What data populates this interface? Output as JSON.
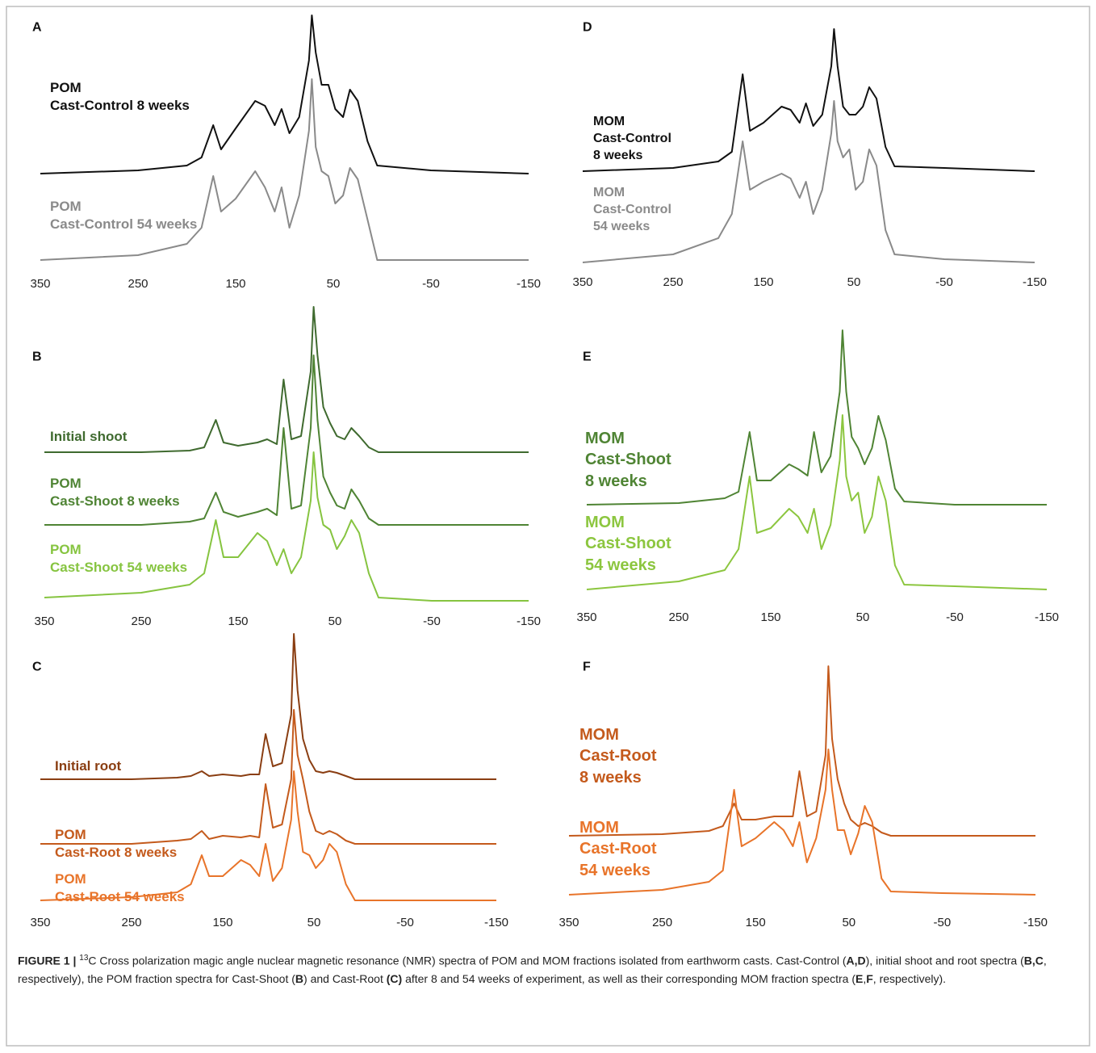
{
  "chart_data": [
    {
      "type": "line",
      "label": "A",
      "xlim": [
        350,
        -150
      ],
      "xticks": [
        350,
        250,
        150,
        50,
        -50,
        -150
      ],
      "x": [
        350,
        250,
        200,
        185,
        173,
        165,
        150,
        130,
        120,
        110,
        103,
        95,
        85,
        75,
        72,
        68,
        62,
        55,
        48,
        40,
        33,
        25,
        15,
        5,
        -50,
        -150
      ],
      "series": [
        {
          "name": "POM\nCast-Control 8 weeks",
          "color": "#111111",
          "values": [
            0,
            2,
            5,
            10,
            30,
            15,
            28,
            45,
            42,
            30,
            40,
            25,
            35,
            70,
            98,
            75,
            55,
            55,
            40,
            35,
            52,
            45,
            20,
            5,
            2,
            0
          ]
        },
        {
          "name": "POM\nCast-Control 54 weeks",
          "color": "#8a8a8a",
          "values": [
            0,
            3,
            10,
            20,
            52,
            30,
            38,
            55,
            45,
            30,
            45,
            20,
            40,
            80,
            112,
            70,
            55,
            52,
            35,
            40,
            57,
            50,
            25,
            0,
            0,
            0
          ]
        }
      ]
    },
    {
      "type": "line",
      "label": "B",
      "xlim": [
        350,
        -150
      ],
      "xticks": [
        350,
        250,
        150,
        50,
        -50,
        -150
      ],
      "x": [
        350,
        250,
        200,
        185,
        173,
        165,
        150,
        130,
        120,
        110,
        103,
        95,
        85,
        75,
        72,
        68,
        62,
        55,
        48,
        40,
        33,
        25,
        15,
        5,
        -50,
        -150
      ],
      "series": [
        {
          "name": "Initial shoot",
          "color": "#3f6a2f",
          "values": [
            0,
            0,
            1,
            3,
            20,
            6,
            4,
            6,
            8,
            5,
            45,
            8,
            10,
            50,
            90,
            60,
            28,
            18,
            10,
            8,
            15,
            10,
            3,
            0,
            0,
            0
          ]
        },
        {
          "name": "POM\nCast-Shoot 8 weeks",
          "color": "#4f8434",
          "values": [
            0,
            0,
            2,
            4,
            20,
            8,
            5,
            8,
            10,
            6,
            60,
            10,
            12,
            60,
            105,
            65,
            30,
            20,
            12,
            10,
            22,
            15,
            4,
            0,
            0,
            0
          ]
        },
        {
          "name": "POM\nCast-Shoot 54 weeks",
          "color": "#86c440",
          "values": [
            0,
            3,
            8,
            15,
            48,
            25,
            25,
            40,
            35,
            20,
            30,
            15,
            25,
            60,
            90,
            62,
            45,
            42,
            30,
            38,
            48,
            40,
            15,
            0,
            -2,
            -2
          ]
        }
      ]
    },
    {
      "type": "line",
      "label": "C",
      "xlim": [
        350,
        -150
      ],
      "xticks": [
        350,
        250,
        150,
        50,
        -50,
        -150
      ],
      "x": [
        350,
        250,
        200,
        185,
        173,
        165,
        150,
        130,
        120,
        110,
        103,
        95,
        85,
        75,
        72,
        68,
        62,
        55,
        48,
        40,
        33,
        25,
        15,
        5,
        -50,
        -150
      ],
      "series": [
        {
          "name": "Initial root",
          "color": "#8a3e12",
          "values": [
            0,
            0,
            1,
            2,
            5,
            2,
            3,
            2,
            3,
            3,
            28,
            8,
            10,
            40,
            90,
            55,
            25,
            12,
            5,
            4,
            5,
            4,
            2,
            0,
            0,
            0
          ]
        },
        {
          "name": "POM\nCast-Root 8 weeks",
          "color": "#c45a1c",
          "values": [
            0,
            0,
            2,
            3,
            8,
            3,
            5,
            4,
            5,
            4,
            37,
            10,
            12,
            40,
            83,
            55,
            40,
            20,
            8,
            6,
            8,
            6,
            2,
            0,
            0,
            0
          ]
        },
        {
          "name": "POM\nCast-Root 54 weeks",
          "color": "#e8742a",
          "values": [
            0,
            2,
            5,
            10,
            28,
            15,
            15,
            25,
            22,
            15,
            35,
            12,
            20,
            50,
            80,
            55,
            30,
            28,
            20,
            25,
            35,
            30,
            10,
            0,
            0,
            0
          ]
        }
      ]
    },
    {
      "type": "line",
      "label": "D",
      "xlim": [
        350,
        -150
      ],
      "xticks": [
        350,
        250,
        150,
        50,
        -50,
        -150
      ],
      "x": [
        350,
        250,
        200,
        185,
        173,
        165,
        150,
        130,
        120,
        110,
        103,
        95,
        85,
        75,
        72,
        68,
        62,
        55,
        48,
        40,
        33,
        25,
        15,
        5,
        -50,
        -150
      ],
      "series": [
        {
          "name": "MOM\nCast-Control\n8 weeks",
          "color": "#111111",
          "values": [
            0,
            2,
            6,
            12,
            60,
            25,
            30,
            40,
            38,
            30,
            42,
            28,
            35,
            65,
            88,
            65,
            40,
            35,
            35,
            40,
            52,
            45,
            15,
            3,
            2,
            0
          ]
        },
        {
          "name": "MOM\nCast-Control\n54 weeks",
          "color": "#8a8a8a",
          "values": [
            0,
            5,
            15,
            30,
            75,
            45,
            50,
            55,
            52,
            40,
            50,
            30,
            45,
            80,
            100,
            75,
            65,
            70,
            45,
            50,
            70,
            60,
            20,
            5,
            2,
            0
          ]
        }
      ]
    },
    {
      "type": "line",
      "label": "E",
      "xlim": [
        350,
        -150
      ],
      "xticks": [
        350,
        250,
        150,
        50,
        -50,
        -150
      ],
      "x": [
        350,
        250,
        200,
        185,
        173,
        165,
        150,
        130,
        120,
        110,
        103,
        95,
        85,
        75,
        72,
        68,
        62,
        55,
        48,
        40,
        33,
        25,
        15,
        5,
        -50,
        -150
      ],
      "series": [
        {
          "name": "MOM\nCast-Shoot\n8 weeks",
          "color": "#4f8434",
          "values": [
            0,
            1,
            4,
            8,
            45,
            15,
            15,
            25,
            22,
            18,
            45,
            20,
            30,
            70,
            108,
            70,
            42,
            35,
            25,
            35,
            55,
            40,
            10,
            2,
            0,
            0
          ]
        },
        {
          "name": "MOM\nCast-Shoot\n54 weeks",
          "color": "#8cc63f",
          "values": [
            0,
            5,
            12,
            25,
            70,
            35,
            38,
            50,
            45,
            35,
            50,
            25,
            40,
            80,
            108,
            70,
            55,
            60,
            35,
            45,
            70,
            55,
            15,
            3,
            2,
            0
          ]
        }
      ]
    },
    {
      "type": "line",
      "label": "F",
      "xlim": [
        350,
        -150
      ],
      "xticks": [
        350,
        250,
        150,
        50,
        -50,
        -150
      ],
      "x": [
        350,
        250,
        200,
        185,
        173,
        165,
        150,
        130,
        120,
        110,
        103,
        95,
        85,
        75,
        72,
        68,
        62,
        55,
        48,
        40,
        33,
        25,
        15,
        5,
        -50,
        -150
      ],
      "series": [
        {
          "name": "MOM\nCast-Root\n8 weeks",
          "color": "#c45a1c",
          "values": [
            0,
            1,
            3,
            6,
            20,
            10,
            10,
            12,
            12,
            12,
            40,
            12,
            15,
            50,
            105,
            60,
            35,
            20,
            10,
            6,
            8,
            6,
            2,
            0,
            0,
            0
          ]
        },
        {
          "name": "MOM\nCast-Root\n54 weeks",
          "color": "#e8742a",
          "values": [
            0,
            3,
            8,
            15,
            65,
            30,
            35,
            45,
            40,
            30,
            45,
            20,
            35,
            65,
            90,
            65,
            40,
            40,
            25,
            38,
            55,
            45,
            10,
            2,
            1,
            0
          ]
        }
      ]
    }
  ],
  "caption": [
    "FIGURE 1 | ",
    "13",
    "C Cross polarization magic angle nuclear magnetic resonance (NMR) spectra of POM and MOM fractions isolated from earthworm casts. Cast-Control (",
    "A,D",
    "), initial shoot and root spectra (",
    "B,C",
    ", respectively), the POM fraction spectra for Cast-Shoot (",
    "B",
    ") and Cast-Root ",
    "(C)",
    " after 8 and 54 weeks of experiment, as well as their corresponding MOM fraction spectra (",
    "E",
    ",",
    "F",
    ", respectively)."
  ]
}
